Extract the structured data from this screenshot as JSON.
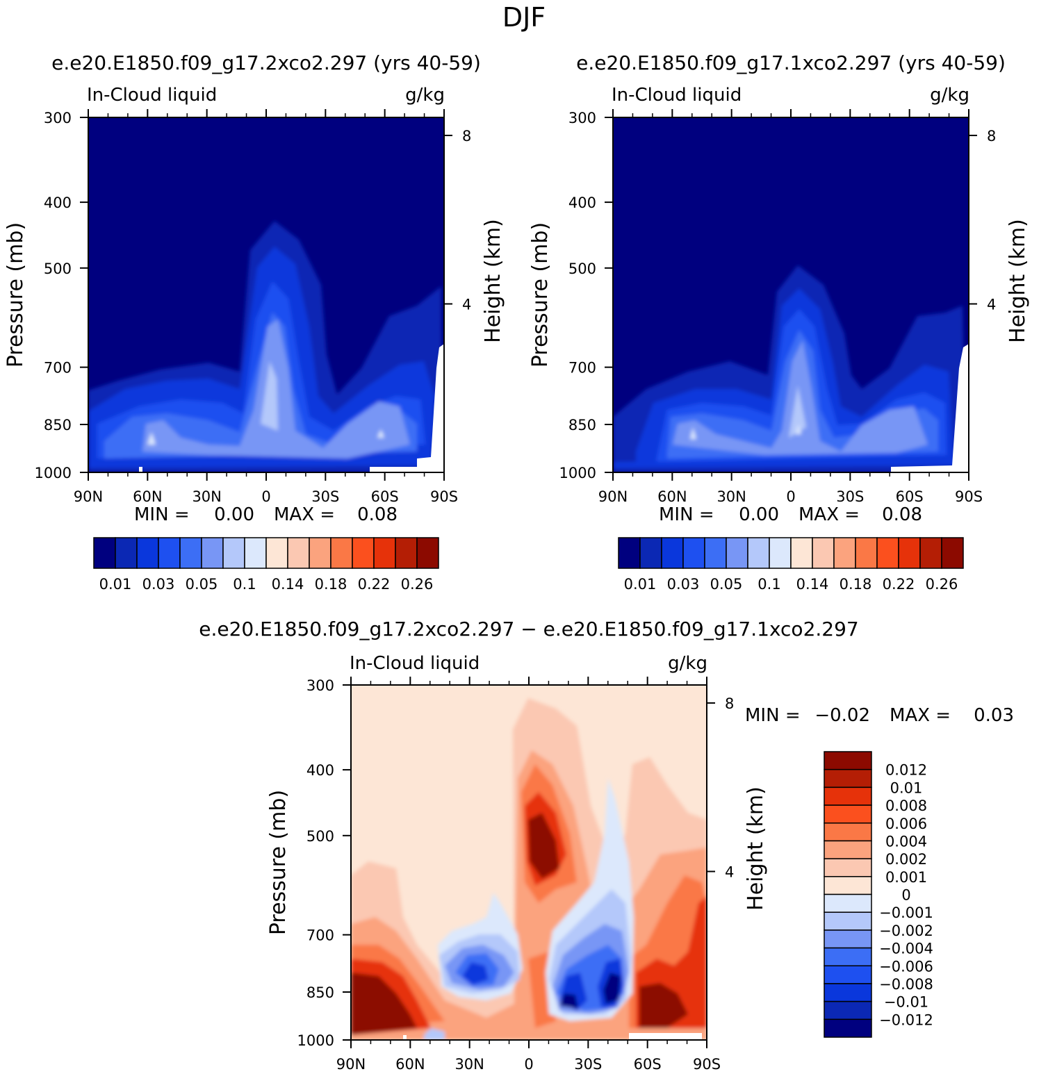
{
  "figure_title": "DJF",
  "chart_data": [
    {
      "type": "contour",
      "title": "e.e20.E1850.f09_g17.2xco2.297 (yrs 40-59)",
      "variable": "In-Cloud liquid",
      "units": "g/kg",
      "ylabel": "Pressure (mb)",
      "ylabel_right": "Height (km)",
      "xticks": [
        "90N",
        "60N",
        "30N",
        "0",
        "30S",
        "60S",
        "90S"
      ],
      "yticks": [
        "300",
        "400",
        "500",
        "700",
        "850",
        "1000"
      ],
      "yticks_right": [
        "8",
        "4"
      ],
      "ylim": [
        1000,
        300
      ],
      "min_label": "MIN =",
      "min_value": "0.00",
      "max_label": "MAX =",
      "max_value": "0.08",
      "colorbar_labels": [
        "0.01",
        "0.03",
        "0.05",
        "0.1",
        "0.14",
        "0.18",
        "0.22",
        "0.26"
      ],
      "colorbar_levels": [
        0.005,
        0.01,
        0.02,
        0.03,
        0.04,
        0.05,
        0.075,
        0.1,
        0.12,
        0.14,
        0.16,
        0.18,
        0.2,
        0.22,
        0.24,
        0.26
      ]
    },
    {
      "type": "contour",
      "title": "e.e20.E1850.f09_g17.1xco2.297 (yrs 40-59)",
      "variable": "In-Cloud liquid",
      "units": "g/kg",
      "ylabel": "Pressure (mb)",
      "ylabel_right": "Height (km)",
      "xticks": [
        "90N",
        "60N",
        "30N",
        "0",
        "30S",
        "60S",
        "90S"
      ],
      "yticks": [
        "300",
        "400",
        "500",
        "700",
        "850",
        "1000"
      ],
      "yticks_right": [
        "8",
        "4"
      ],
      "ylim": [
        1000,
        300
      ],
      "min_label": "MIN =",
      "min_value": "0.00",
      "max_label": "MAX =",
      "max_value": "0.08",
      "colorbar_labels": [
        "0.01",
        "0.03",
        "0.05",
        "0.1",
        "0.14",
        "0.18",
        "0.22",
        "0.26"
      ],
      "colorbar_levels": [
        0.005,
        0.01,
        0.02,
        0.03,
        0.04,
        0.05,
        0.075,
        0.1,
        0.12,
        0.14,
        0.16,
        0.18,
        0.2,
        0.22,
        0.24,
        0.26
      ]
    },
    {
      "type": "contour",
      "title": "e.e20.E1850.f09_g17.2xco2.297 − e.e20.E1850.f09_g17.1xco2.297",
      "variable": "In-Cloud liquid",
      "units": "g/kg",
      "ylabel": "Pressure (mb)",
      "ylabel_right": "Height (km)",
      "xticks": [
        "90N",
        "60N",
        "30N",
        "0",
        "30S",
        "60S",
        "90S"
      ],
      "yticks": [
        "300",
        "400",
        "500",
        "700",
        "850",
        "1000"
      ],
      "yticks_right": [
        "8",
        "4"
      ],
      "ylim": [
        1000,
        300
      ],
      "min_label": "MIN =",
      "min_value": "−0.02",
      "max_label": "MAX =",
      "max_value": "0.03",
      "colorbar_labels": [
        "0.012",
        "0.01",
        "0.008",
        "0.006",
        "0.004",
        "0.002",
        "0.001",
        "0",
        "−0.001",
        "−0.002",
        "−0.004",
        "−0.006",
        "−0.008",
        "−0.01",
        "−0.012"
      ]
    }
  ],
  "colors": {
    "blue_ramp": [
      "#00007f",
      "#0b28b4",
      "#0a37dc",
      "#1e50f0",
      "#3c6ef5",
      "#7896f5",
      "#b4c8fa",
      "#dce8fc"
    ],
    "red_ramp": [
      "#fde6d6",
      "#fbc8b2",
      "#fba37e",
      "#fa7846",
      "#fb501e",
      "#e6320a",
      "#b41e05",
      "#8c0a00"
    ],
    "diff_ramp_top_to_bottom": [
      "#8c0a00",
      "#b41e05",
      "#e6320a",
      "#fb501e",
      "#fa7846",
      "#fba37e",
      "#fbc8b2",
      "#fde6d6",
      "#dce8fc",
      "#b4c8fa",
      "#7896f5",
      "#3c6ef5",
      "#1e50f0",
      "#0a37dc",
      "#0b28b4",
      "#00007f"
    ]
  }
}
